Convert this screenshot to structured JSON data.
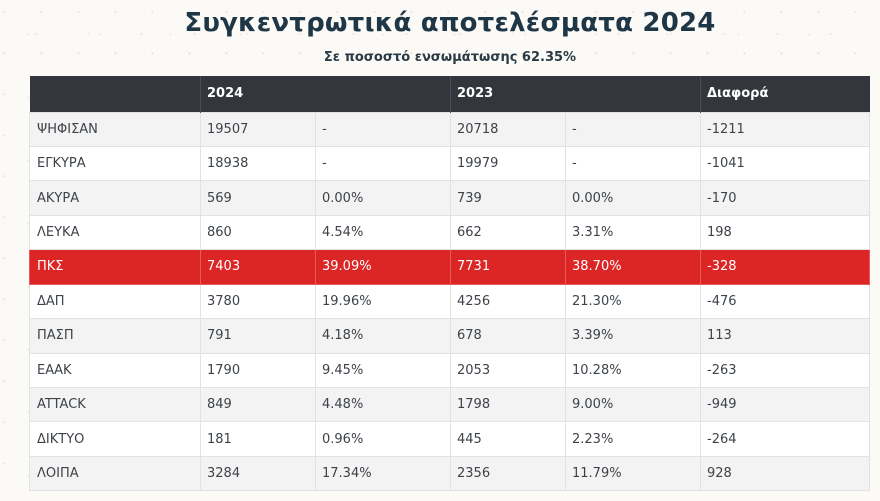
{
  "header": {
    "title": "Συγκεντρωτικά αποτελέσματα 2024",
    "subtitle": "Σε ποσοστό ενσωμάτωσης 62.35%"
  },
  "colors": {
    "title": "#1e3646",
    "table_header_bg": "#33373d",
    "highlight_row_bg": "#dc2626",
    "stripe_bg": "#f3f3f3"
  },
  "table": {
    "columns": [
      "",
      "2024",
      "",
      "2023",
      "",
      "Διαφορά"
    ],
    "rows": [
      {
        "label": "ΨΗΦΙΣΑΝ",
        "v2024": "19507",
        "p2024": "-",
        "v2023": "20718",
        "p2023": "-",
        "diff": "-1211",
        "highlight": false
      },
      {
        "label": "ΕΓΚΥΡΑ",
        "v2024": "18938",
        "p2024": "-",
        "v2023": "19979",
        "p2023": "-",
        "diff": "-1041",
        "highlight": false
      },
      {
        "label": "ΑΚΥΡΑ",
        "v2024": "569",
        "p2024": "0.00%",
        "v2023": "739",
        "p2023": "0.00%",
        "diff": "-170",
        "highlight": false
      },
      {
        "label": "ΛΕΥΚΑ",
        "v2024": "860",
        "p2024": "4.54%",
        "v2023": "662",
        "p2023": "3.31%",
        "diff": "198",
        "highlight": false
      },
      {
        "label": "ΠΚΣ",
        "v2024": "7403",
        "p2024": "39.09%",
        "v2023": "7731",
        "p2023": "38.70%",
        "diff": "-328",
        "highlight": true
      },
      {
        "label": "ΔΑΠ",
        "v2024": "3780",
        "p2024": "19.96%",
        "v2023": "4256",
        "p2023": "21.30%",
        "diff": "-476",
        "highlight": false
      },
      {
        "label": "ΠΑΣΠ",
        "v2024": "791",
        "p2024": "4.18%",
        "v2023": "678",
        "p2023": "3.39%",
        "diff": "113",
        "highlight": false
      },
      {
        "label": "ΕΑΑΚ",
        "v2024": "1790",
        "p2024": "9.45%",
        "v2023": "2053",
        "p2023": "10.28%",
        "diff": "-263",
        "highlight": false
      },
      {
        "label": "ATTACK",
        "v2024": "849",
        "p2024": "4.48%",
        "v2023": "1798",
        "p2023": "9.00%",
        "diff": "-949",
        "highlight": false
      },
      {
        "label": "ΔΙΚΤΥΟ",
        "v2024": "181",
        "p2024": "0.96%",
        "v2023": "445",
        "p2023": "2.23%",
        "diff": "-264",
        "highlight": false
      },
      {
        "label": "ΛΟΙΠΑ",
        "v2024": "3284",
        "p2024": "17.34%",
        "v2023": "2356",
        "p2023": "11.79%",
        "diff": "928",
        "highlight": false
      }
    ]
  }
}
